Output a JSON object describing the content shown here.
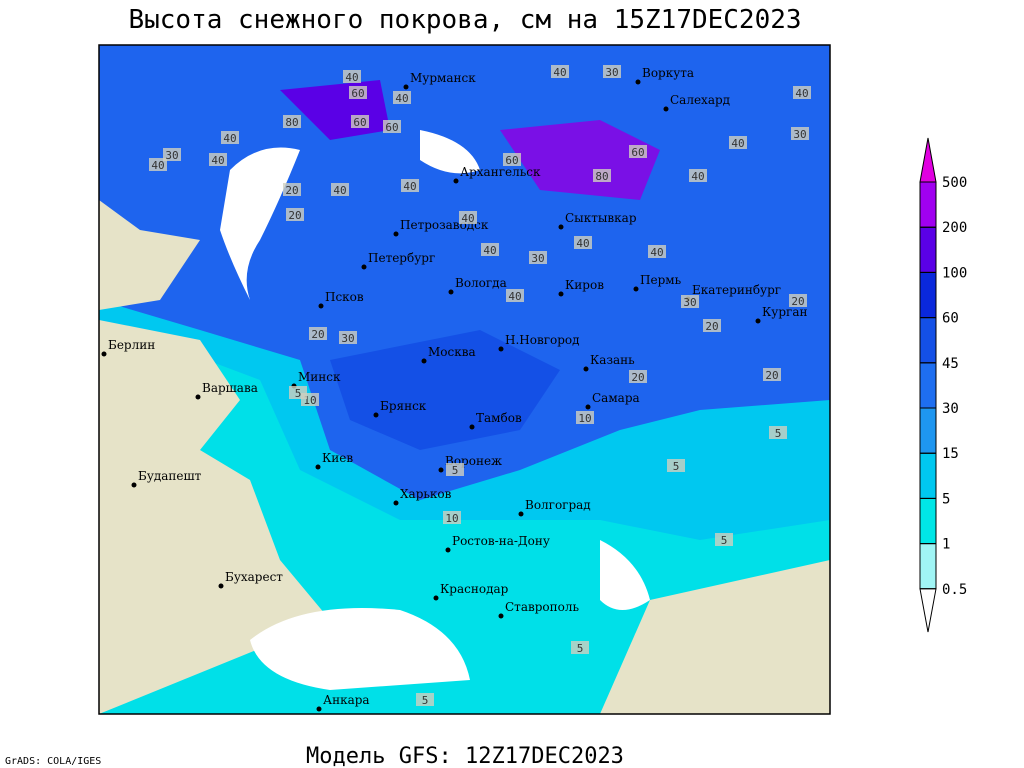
{
  "title": "Высота снежного покрова, см на 15Z17DEC2023",
  "subtitle": "Модель GFS: 12Z17DEC2023",
  "credit": "GrADS: COLA/IGES",
  "legend": {
    "levels": [
      0.5,
      1,
      5,
      15,
      30,
      45,
      60,
      100,
      200,
      500
    ],
    "colors": [
      "#ffffff",
      "#a0f5f5",
      "#00e6e6",
      "#00c8f0",
      "#1e96f0",
      "#1e6ef0",
      "#1450e6",
      "#0a28dc",
      "#5a00e6",
      "#a000f0",
      "#e000e0"
    ]
  },
  "cities": [
    "Мурманск",
    "Воркута",
    "Салехард",
    "Архангельск",
    "Петрозаводск",
    "Сыктывкар",
    "Петербург",
    "Вологда",
    "Киров",
    "Пермь",
    "Екатеринбург",
    "Курган",
    "Псков",
    "Москва",
    "Н.Новгород",
    "Казань",
    "Берлин",
    "Варшава",
    "Минск",
    "Брянск",
    "Тамбов",
    "Самара",
    "Киев",
    "Воронеж",
    "Будапешт",
    "Харьков",
    "Волгоград",
    "Ростов-на-Дону",
    "Бухарест",
    "Краснодар",
    "Ставрополь",
    "Анкара"
  ],
  "contour_labels": [
    40,
    60,
    40,
    60,
    80,
    40,
    30,
    60,
    40,
    40,
    40,
    30,
    80,
    60,
    60,
    40,
    40,
    40,
    40,
    20,
    20,
    40,
    40,
    30,
    40,
    40,
    40,
    30,
    30,
    20,
    20,
    20,
    30,
    40,
    10,
    5,
    20,
    20,
    10,
    5,
    5,
    5,
    5,
    10,
    5,
    5
  ]
}
